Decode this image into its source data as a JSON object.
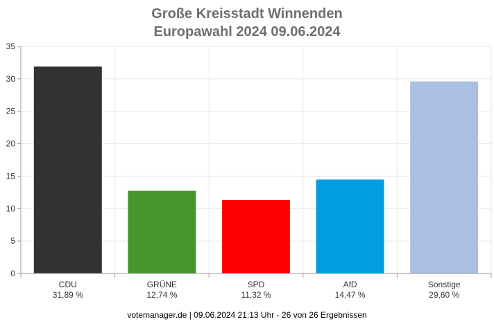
{
  "chart_data": {
    "type": "bar",
    "title": "Große Kreisstadt Winnenden",
    "subtitle": "Europawahl 2024 09.06.2024",
    "categories": [
      "CDU",
      "GRÜNE",
      "SPD",
      "AfD",
      "Sonstige"
    ],
    "value_labels": [
      "31,89 %",
      "12,74 %",
      "11,32 %",
      "14,47 %",
      "29,60 %"
    ],
    "values": [
      31.89,
      12.74,
      11.32,
      14.47,
      29.6
    ],
    "colors": [
      "#333231",
      "#46962b",
      "#ff0000",
      "#009ee0",
      "#aabfe3"
    ],
    "ylim": [
      0,
      35
    ],
    "yticks": [
      "0",
      "5",
      "10",
      "15",
      "20",
      "25",
      "30",
      "35"
    ],
    "grid": true,
    "xlabel": "",
    "ylabel": ""
  },
  "footer": "votemanager.de | 09.06.2024 21:13 Uhr - 26 von 26 Ergebnissen"
}
